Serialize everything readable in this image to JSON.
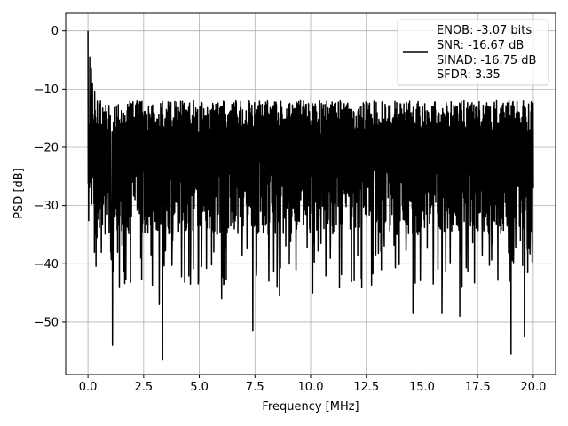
{
  "chart_data": {
    "type": "line",
    "title": "",
    "xlabel": "Frequency [MHz]",
    "ylabel": "PSD [dB]",
    "xlim": [
      -1.0,
      21.0
    ],
    "ylim": [
      -59.0,
      3.0
    ],
    "xticks": [
      0.0,
      2.5,
      5.0,
      7.5,
      10.0,
      12.5,
      15.0,
      17.5,
      20.0
    ],
    "xtick_labels": [
      "0.0",
      "2.5",
      "5.0",
      "7.5",
      "10.0",
      "12.5",
      "15.0",
      "17.5",
      "20.0"
    ],
    "yticks": [
      0,
      -10,
      -20,
      -30,
      -40,
      -50
    ],
    "ytick_labels": [
      "0",
      "−10",
      "−20",
      "−30",
      "−40",
      "−50"
    ],
    "grid": true,
    "legend_position": "top-right",
    "legend_lines": [
      "ENOB: -3.07 bits",
      "SNR: -16.67 dB",
      "SINAD: -16.75 dB",
      "SFDR: 3.35"
    ],
    "color": "#000000",
    "series": [
      {
        "x_start": 0.0,
        "x_end": 20.0,
        "n_points": 2000,
        "typical_value": -22,
        "peak_value": 0,
        "noise_floor_range": [
          -35,
          -12
        ],
        "notable_points": [
          {
            "x": 0.0,
            "y": 0.0
          },
          {
            "x": 0.05,
            "y": -17.5
          },
          {
            "x": 0.08,
            "y": -4.5
          },
          {
            "x": 0.12,
            "y": -26
          },
          {
            "x": 0.15,
            "y": -6.5
          },
          {
            "x": 0.2,
            "y": -9
          },
          {
            "x": 0.3,
            "y": -10.5
          },
          {
            "x": 0.4,
            "y": -35.5
          },
          {
            "x": 1.02,
            "y": -38
          },
          {
            "x": 1.1,
            "y": -54
          },
          {
            "x": 3.2,
            "y": -47
          },
          {
            "x": 3.35,
            "y": -56.5
          },
          {
            "x": 4.6,
            "y": -43.5
          },
          {
            "x": 5.1,
            "y": -40.5
          },
          {
            "x": 6.0,
            "y": -46
          },
          {
            "x": 7.4,
            "y": -51.5
          },
          {
            "x": 8.6,
            "y": -45.5
          },
          {
            "x": 10.1,
            "y": -45
          },
          {
            "x": 11.3,
            "y": -44
          },
          {
            "x": 12.3,
            "y": -44
          },
          {
            "x": 14.6,
            "y": -48.5
          },
          {
            "x": 15.9,
            "y": -48.5
          },
          {
            "x": 16.7,
            "y": -49
          },
          {
            "x": 19.0,
            "y": -55.5
          },
          {
            "x": 19.6,
            "y": -52.5
          },
          {
            "x": 20.0,
            "y": -27
          }
        ]
      }
    ]
  }
}
